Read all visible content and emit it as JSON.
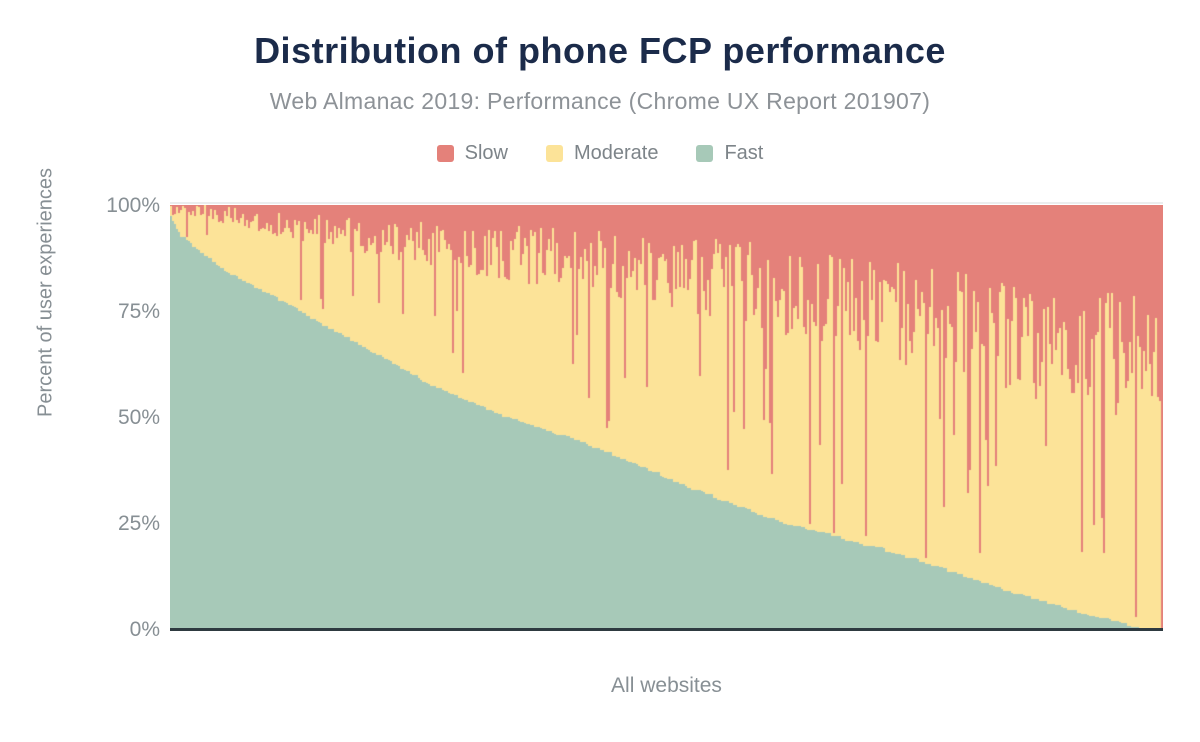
{
  "chart_data": {
    "type": "bar",
    "variant": "stacked-100pct-distribution",
    "title": "Distribution of phone FCP performance",
    "subtitle": "Web Almanac 2019: Performance (Chrome UX Report 201907)",
    "xlabel": "All websites",
    "ylabel": "Percent of user experiences",
    "y_ticks": [
      "100%",
      "75%",
      "50%",
      "25%",
      "0%"
    ],
    "ylim": [
      0,
      100
    ],
    "grid": "off",
    "legend_position": "top-center",
    "series_order_bottom_to_top": [
      "Fast",
      "Moderate",
      "Slow"
    ],
    "legend": [
      {
        "label": "Slow",
        "key": "slow"
      },
      {
        "label": "Moderate",
        "key": "moderate"
      },
      {
        "label": "Fast",
        "key": "fast"
      }
    ],
    "colors": {
      "slow": "#e4817a",
      "moderate": "#fce398",
      "fast": "#a7c9b8"
    },
    "n_bars": 497,
    "fast_pct_anchors": [
      [
        0,
        97
      ],
      [
        0.01,
        93
      ],
      [
        0.03,
        89
      ],
      [
        0.06,
        84
      ],
      [
        0.1,
        79
      ],
      [
        0.145,
        73
      ],
      [
        0.2,
        66
      ],
      [
        0.26,
        58
      ],
      [
        0.33,
        51
      ],
      [
        0.43,
        43
      ],
      [
        0.52,
        34
      ],
      [
        0.61,
        26
      ],
      [
        0.735,
        18
      ],
      [
        0.836,
        10
      ],
      [
        0.937,
        3
      ],
      [
        0.977,
        0.5
      ],
      [
        1,
        0
      ]
    ],
    "fast_plus_moderate_mean_anchors": [
      [
        0,
        99.3
      ],
      [
        0.1,
        96
      ],
      [
        0.2,
        92
      ],
      [
        0.33,
        89
      ],
      [
        0.5,
        85
      ],
      [
        0.7,
        77
      ],
      [
        0.85,
        69
      ],
      [
        1,
        63
      ]
    ],
    "noise_amp_anchors": [
      [
        0,
        1.2
      ],
      [
        0.1,
        3
      ],
      [
        0.3,
        6
      ],
      [
        0.5,
        9
      ],
      [
        0.7,
        12
      ],
      [
        1,
        15
      ]
    ],
    "slow_spike_probability": 0.085,
    "slow_spike_depth_range": [
      0.35,
      1.0
    ],
    "final_bar": {
      "fast": 0,
      "moderate": 0,
      "slow": 100
    },
    "random_seed": 20190701
  },
  "axis_colors": {
    "baseline": "#2e3a40",
    "tick_text": "#878f94"
  }
}
